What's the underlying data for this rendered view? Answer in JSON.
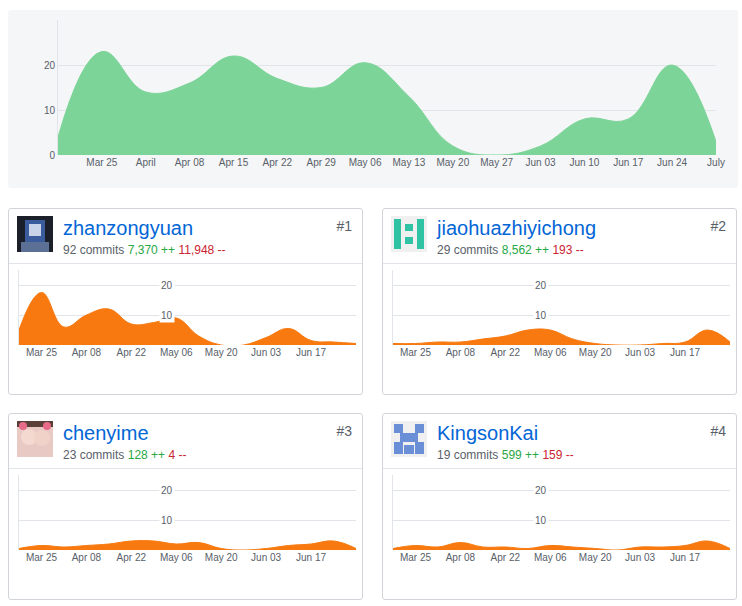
{
  "chart_data": [
    {
      "type": "area",
      "color": "#7dd499",
      "categories": [
        null,
        "Mar 25",
        "April",
        "Apr 08",
        "Apr 15",
        "Apr 22",
        "Apr 29",
        "May 06",
        "May 13",
        "May 20",
        "May 27",
        "Jun 03",
        "Jun 10",
        "Jun 17",
        "Jun 24",
        "July"
      ],
      "values": [
        4,
        23,
        14,
        16,
        22,
        17,
        15,
        20.5,
        13,
        2,
        0,
        2,
        8,
        8,
        20,
        3
      ],
      "ylim": [
        0,
        30
      ],
      "yticks": [
        0,
        10,
        20
      ],
      "grid": true
    },
    {
      "type": "area",
      "color": "#f7790f",
      "categories": [
        null,
        "Mar 25",
        null,
        "Apr 08",
        null,
        "Apr 22",
        null,
        "May 06",
        null,
        "May 20",
        null,
        "Jun 03",
        null,
        "Jun 17",
        null,
        null
      ],
      "values": [
        5,
        17.5,
        6,
        10,
        12,
        7,
        7.5,
        9,
        3,
        0,
        0,
        2.5,
        5.5,
        1.5,
        1,
        0.5
      ],
      "ylim": [
        0,
        25
      ],
      "yticks": [
        10,
        20
      ],
      "grid": true
    },
    {
      "type": "area",
      "color": "#f7790f",
      "categories": [
        null,
        "Mar 25",
        null,
        "Apr 08",
        null,
        "Apr 22",
        null,
        "May 06",
        null,
        "May 20",
        null,
        "Jun 03",
        null,
        "Jun 17",
        null,
        null
      ],
      "values": [
        0.5,
        0.5,
        1,
        1,
        2,
        3,
        5,
        5,
        2,
        0.5,
        0,
        0,
        0.5,
        1,
        5,
        1
      ],
      "ylim": [
        0,
        25
      ],
      "yticks": [
        10,
        20
      ],
      "grid": true
    },
    {
      "type": "area",
      "color": "#f7790f",
      "categories": [
        null,
        "Mar 25",
        null,
        "Apr 08",
        null,
        "Apr 22",
        null,
        "May 06",
        null,
        "May 20",
        null,
        "Jun 03",
        null,
        "Jun 17",
        null,
        null
      ],
      "values": [
        0.5,
        1.5,
        1,
        1.5,
        2,
        3,
        3,
        2,
        2.5,
        0.5,
        0,
        0.5,
        1.5,
        2,
        3,
        0.5
      ],
      "ylim": [
        0,
        25
      ],
      "yticks": [
        10,
        20
      ],
      "grid": true
    },
    {
      "type": "area",
      "color": "#f7790f",
      "categories": [
        null,
        "Mar 25",
        null,
        "Apr 08",
        null,
        "Apr 22",
        null,
        "May 06",
        null,
        "May 20",
        null,
        "Jun 03",
        null,
        "Jun 17",
        null,
        null
      ],
      "values": [
        0.5,
        1.5,
        1,
        2.5,
        1,
        1,
        0.5,
        1.5,
        1,
        0.5,
        0,
        1,
        1,
        1.5,
        3,
        0.5
      ],
      "ylim": [
        0,
        25
      ],
      "yticks": [
        10,
        20
      ],
      "grid": true
    }
  ],
  "contributors": [
    {
      "rank": "#1",
      "name": "zhanzongyuan",
      "commits": "92 commits",
      "additions": "7,370 ++",
      "deletions": "11,948 --"
    },
    {
      "rank": "#2",
      "name": "jiaohuazhiyichong",
      "commits": "29 commits",
      "additions": "8,562 ++",
      "deletions": "193 --"
    },
    {
      "rank": "#3",
      "name": "chenyime",
      "commits": "23 commits",
      "additions": "128 ++",
      "deletions": "4 --"
    },
    {
      "rank": "#4",
      "name": "KingsonKai",
      "commits": "19 commits",
      "additions": "599 ++",
      "deletions": "159 --"
    }
  ]
}
